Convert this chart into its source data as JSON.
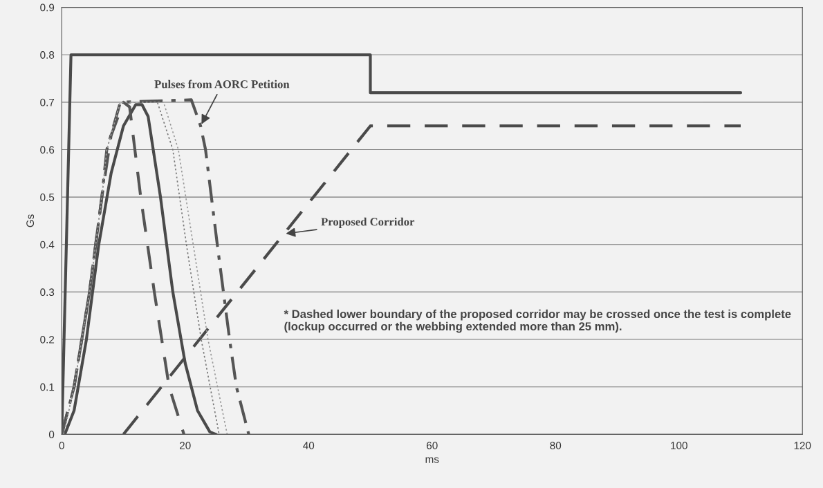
{
  "chart_data": {
    "type": "line",
    "xlabel": "ms",
    "ylabel": "Gs",
    "xlim": [
      0,
      120
    ],
    "xticks": [
      0,
      20,
      40,
      60,
      80,
      100,
      120
    ],
    "ylim": [
      0,
      0.9
    ],
    "yticks": [
      0,
      0.1,
      0.2,
      0.3,
      0.4,
      0.5,
      0.6,
      0.7,
      0.8,
      0.9
    ],
    "grid": "y",
    "legend": false,
    "marker": "none",
    "series": [
      {
        "color": "#4a4a4a",
        "line_style": "solid",
        "x": [
          0,
          1.5,
          50,
          50,
          110
        ],
        "values": [
          0,
          0.8,
          0.8,
          0.72,
          0.72
        ]
      },
      {
        "color": "#4a4a4a",
        "line_style": "dashed",
        "x": [
          10,
          50,
          110
        ],
        "values": [
          0,
          0.65,
          0.65
        ]
      },
      {
        "color": "#4a4a4a",
        "line_style": "solid",
        "x": [
          0.5,
          2,
          4,
          6,
          8,
          10,
          12,
          13,
          14,
          16,
          18,
          20,
          22,
          24,
          25
        ],
        "values": [
          0,
          0.05,
          0.2,
          0.4,
          0.55,
          0.65,
          0.695,
          0.695,
          0.67,
          0.5,
          0.3,
          0.15,
          0.05,
          0.005,
          0
        ]
      },
      {
        "color": "#555555",
        "line_style": "dashed",
        "x": [
          0,
          2,
          4.5,
          6.5,
          8,
          10,
          11,
          12.8,
          15,
          17.4,
          19.8
        ],
        "values": [
          0,
          0.1,
          0.3,
          0.5,
          0.63,
          0.7,
          0.69,
          0.5,
          0.3,
          0.1,
          0
        ]
      },
      {
        "color": "#555555",
        "line_style": "dashdot",
        "x": [
          0,
          2,
          4.5,
          6.5,
          7.3,
          9.5,
          21,
          22.5,
          23.3,
          25.2,
          27.2,
          28.3,
          30.3
        ],
        "values": [
          0,
          0.1,
          0.3,
          0.5,
          0.6,
          0.7,
          0.705,
          0.65,
          0.6,
          0.4,
          0.2,
          0.1,
          0
        ]
      },
      {
        "color": "#777777",
        "line_style": "dotted",
        "x": [
          0.3,
          2,
          4.5,
          6.5,
          7.3,
          9.5,
          15.5,
          18,
          20.2,
          22.6,
          25.5
        ],
        "values": [
          0,
          0.1,
          0.3,
          0.5,
          0.6,
          0.7,
          0.7,
          0.6,
          0.4,
          0.2,
          0
        ]
      },
      {
        "color": "#999999",
        "line_style": "dotted",
        "x": [
          0.3,
          2,
          4.5,
          6.5,
          7.3,
          9.5,
          16.5,
          18.9,
          21.3,
          23.7,
          26.8
        ],
        "values": [
          0,
          0.1,
          0.3,
          0.5,
          0.6,
          0.7,
          0.7,
          0.6,
          0.4,
          0.2,
          0
        ]
      }
    ],
    "annotations": [
      {
        "text": "Pulses from AORC Petition",
        "x": 22.5,
        "y": 0.65
      },
      {
        "text": "Proposed Corridor",
        "x": 36,
        "y": 0.4225
      },
      "* Dashed lower boundary of the proposed corridor may be crossed once the test is complete (lockup occurred or the webbing extended more than 25 mm)."
    ]
  }
}
